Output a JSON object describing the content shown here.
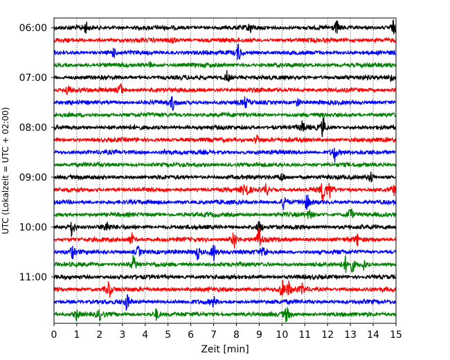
{
  "chart_data": {
    "type": "line",
    "title": "",
    "xlabel": "Zeit  [min]",
    "ylabel": "UTC (Lokalzeit = UTC + 02:00)",
    "xlim": [
      0,
      15
    ],
    "x_ticks": [
      "0",
      "1",
      "2",
      "3",
      "4",
      "5",
      "6",
      "7",
      "8",
      "9",
      "10",
      "11",
      "12",
      "13",
      "14",
      "15"
    ],
    "y_tick_labels": [
      "06:00",
      "07:00",
      "08:00",
      "09:00",
      "10:00",
      "11:00"
    ],
    "trace_start": "06:00",
    "trace_interval_min": 15,
    "trace_count": 24,
    "color_cycle": [
      "#000000",
      "#ff0000",
      "#0000ff",
      "#008000"
    ],
    "grid": {
      "x": true,
      "y": false,
      "style": "dotted"
    },
    "events": [
      {
        "trace": 0,
        "t": 1.4,
        "a": 1.0
      },
      {
        "trace": 0,
        "t": 8.6,
        "a": 1.0
      },
      {
        "trace": 0,
        "t": 12.4,
        "a": 1.2
      },
      {
        "trace": 0,
        "t": 14.9,
        "a": 1.3
      },
      {
        "trace": 1,
        "t": 5.2,
        "a": 1.0
      },
      {
        "trace": 2,
        "t": 2.6,
        "a": 0.9
      },
      {
        "trace": 2,
        "t": 8.1,
        "a": 1.8
      },
      {
        "trace": 3,
        "t": 4.2,
        "a": 0.6
      },
      {
        "trace": 4,
        "t": 7.6,
        "a": 1.3
      },
      {
        "trace": 4,
        "t": 14.8,
        "a": 1.0
      },
      {
        "trace": 5,
        "t": 0.6,
        "a": 1.2
      },
      {
        "trace": 5,
        "t": 2.9,
        "a": 1.5
      },
      {
        "trace": 6,
        "t": 5.2,
        "a": 1.4
      },
      {
        "trace": 6,
        "t": 8.4,
        "a": 1.0
      },
      {
        "trace": 6,
        "t": 10.7,
        "a": 0.9
      },
      {
        "trace": 8,
        "t": 10.9,
        "a": 1.0
      },
      {
        "trace": 8,
        "t": 11.8,
        "a": 2.0
      },
      {
        "trace": 9,
        "t": 8.9,
        "a": 1.0
      },
      {
        "trace": 10,
        "t": 12.3,
        "a": 1.8
      },
      {
        "trace": 10,
        "t": 4.9,
        "a": 0.7
      },
      {
        "trace": 12,
        "t": 10.0,
        "a": 1.0
      },
      {
        "trace": 12,
        "t": 13.9,
        "a": 1.3
      },
      {
        "trace": 13,
        "t": 8.4,
        "a": 2.4
      },
      {
        "trace": 13,
        "t": 9.3,
        "a": 1.3
      },
      {
        "trace": 13,
        "t": 11.8,
        "a": 2.2
      },
      {
        "trace": 13,
        "t": 12.1,
        "a": 1.6
      },
      {
        "trace": 13,
        "t": 14.9,
        "a": 1.0
      },
      {
        "trace": 14,
        "t": 10.1,
        "a": 1.6
      },
      {
        "trace": 14,
        "t": 11.1,
        "a": 1.4
      },
      {
        "trace": 15,
        "t": 11.2,
        "a": 1.0
      },
      {
        "trace": 15,
        "t": 13.0,
        "a": 1.6
      },
      {
        "trace": 16,
        "t": 0.8,
        "a": 2.2
      },
      {
        "trace": 16,
        "t": 2.3,
        "a": 1.3
      },
      {
        "trace": 16,
        "t": 9.0,
        "a": 1.3
      },
      {
        "trace": 17,
        "t": 3.4,
        "a": 1.2
      },
      {
        "trace": 17,
        "t": 7.9,
        "a": 2.0
      },
      {
        "trace": 17,
        "t": 9.0,
        "a": 2.6
      },
      {
        "trace": 17,
        "t": 13.3,
        "a": 1.0
      },
      {
        "trace": 18,
        "t": 0.8,
        "a": 1.3
      },
      {
        "trace": 18,
        "t": 3.7,
        "a": 1.1
      },
      {
        "trace": 18,
        "t": 6.3,
        "a": 1.4
      },
      {
        "trace": 18,
        "t": 7.0,
        "a": 1.8
      },
      {
        "trace": 18,
        "t": 9.2,
        "a": 1.2
      },
      {
        "trace": 19,
        "t": 3.5,
        "a": 1.8
      },
      {
        "trace": 19,
        "t": 12.8,
        "a": 1.5
      },
      {
        "trace": 19,
        "t": 13.1,
        "a": 1.4
      },
      {
        "trace": 19,
        "t": 13.6,
        "a": 1.0
      },
      {
        "trace": 21,
        "t": 2.4,
        "a": 2.0
      },
      {
        "trace": 21,
        "t": 10.0,
        "a": 1.8
      },
      {
        "trace": 21,
        "t": 10.3,
        "a": 1.5
      },
      {
        "trace": 21,
        "t": 10.9,
        "a": 1.0
      },
      {
        "trace": 22,
        "t": 3.2,
        "a": 1.6
      },
      {
        "trace": 22,
        "t": 7.0,
        "a": 1.0
      },
      {
        "trace": 23,
        "t": 1.0,
        "a": 1.2
      },
      {
        "trace": 23,
        "t": 2.0,
        "a": 1.0
      },
      {
        "trace": 23,
        "t": 4.5,
        "a": 1.2
      },
      {
        "trace": 23,
        "t": 10.2,
        "a": 1.6
      }
    ]
  }
}
